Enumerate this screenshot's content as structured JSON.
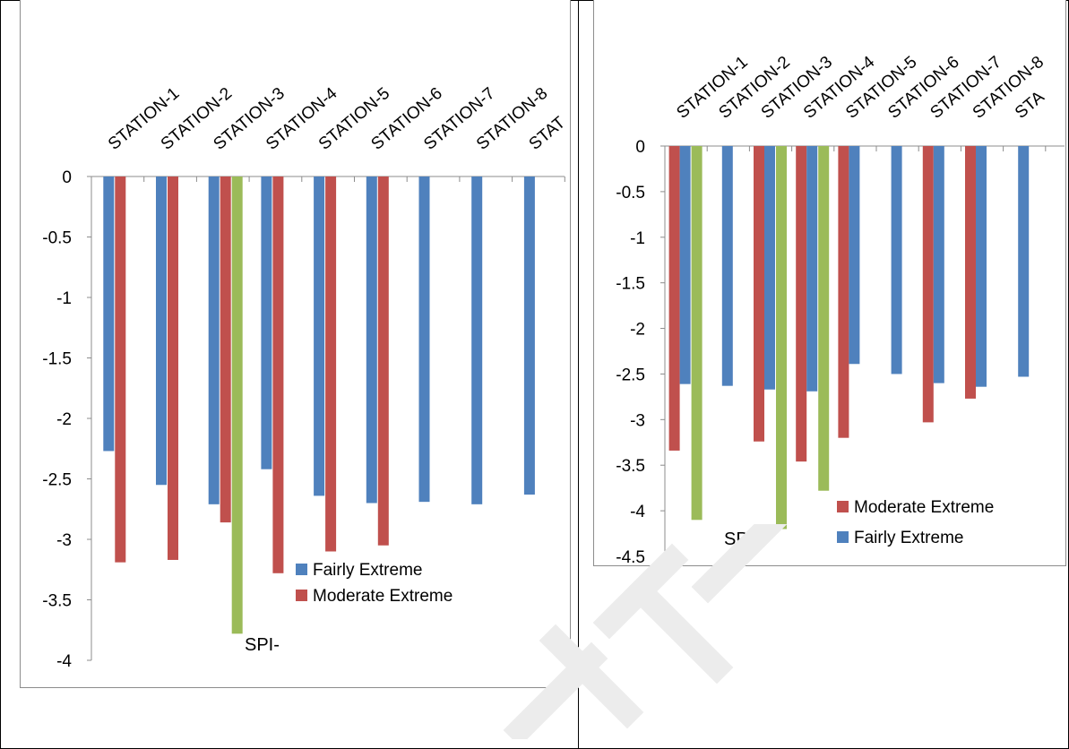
{
  "colors": {
    "fairly_extreme": "#4F81BD",
    "moderate_extreme": "#C0504D",
    "third_series": "#9BBB59",
    "watermark": "#E6E6E6"
  },
  "chart_data": [
    {
      "type": "bar",
      "id": "left",
      "caption": "SPI-",
      "categories": [
        "STATION-1",
        "STATION-2",
        "STATION-3",
        "STATION-4",
        "STATION-5",
        "STATION-6",
        "STATION-7",
        "STATION-8",
        "STAT"
      ],
      "ylim": [
        -4,
        0
      ],
      "yticks": [
        "0",
        "-0.5",
        "-1",
        "-1.5",
        "-2",
        "-2.5",
        "-3",
        "-3.5",
        "-4"
      ],
      "ytick_values": [
        0,
        -0.5,
        -1,
        -1.5,
        -2,
        -2.5,
        -3,
        -3.5,
        -4
      ],
      "series": [
        {
          "name": "Fairly Extreme",
          "color": "#4F81BD",
          "values": [
            -2.27,
            -2.55,
            -2.71,
            -2.42,
            -2.64,
            -2.7,
            -2.69,
            -2.71,
            -2.63
          ]
        },
        {
          "name": "Moderate Extreme",
          "color": "#C0504D",
          "values": [
            -3.19,
            -3.17,
            -2.86,
            -3.28,
            -3.1,
            -3.05,
            null,
            null,
            null
          ]
        },
        {
          "color": "#9BBB59",
          "values": [
            null,
            null,
            -3.78,
            null,
            null,
            null,
            null,
            null,
            null
          ]
        }
      ],
      "legend": [
        "Fairly Extreme",
        "Moderate Extreme"
      ],
      "legend_position": "bottom-right",
      "grid": false
    },
    {
      "type": "bar",
      "id": "right",
      "caption": "SPI",
      "categories": [
        "STATION-1",
        "STATION-2",
        "STATION-3",
        "STATION-4",
        "STATION-5",
        "STATION-6",
        "STATION-7",
        "STATION-8",
        "STA"
      ],
      "ylim": [
        -4.5,
        0
      ],
      "yticks": [
        "0",
        "-0.5",
        "-1",
        "-1.5",
        "-2",
        "-2.5",
        "-3",
        "-3.5",
        "-4",
        "-4.5"
      ],
      "ytick_values": [
        0,
        -0.5,
        -1,
        -1.5,
        -2,
        -2.5,
        -3,
        -3.5,
        -4,
        -4.5
      ],
      "series": [
        {
          "name": "Moderate Extreme",
          "color": "#C0504D",
          "values": [
            -3.34,
            null,
            -3.24,
            -3.46,
            -3.2,
            null,
            -3.03,
            -2.77,
            null
          ]
        },
        {
          "name": "Fairly Extreme",
          "color": "#4F81BD",
          "values": [
            -2.61,
            -2.63,
            -2.67,
            -2.69,
            -2.39,
            -2.5,
            -2.6,
            -2.64,
            -2.53
          ]
        },
        {
          "color": "#9BBB59",
          "values": [
            -4.1,
            null,
            -4.2,
            -3.78,
            null,
            null,
            null,
            null,
            null
          ]
        }
      ],
      "legend": [
        "Moderate Extreme",
        "Fairly Extreme"
      ],
      "legend_position": "bottom-right",
      "grid": false
    }
  ]
}
